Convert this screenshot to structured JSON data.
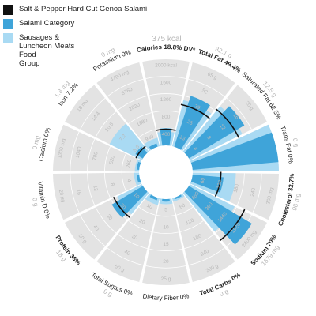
{
  "legend": [
    {
      "label": "Salt & Pepper Hard Cut Genoa Salami",
      "color": "#111111"
    },
    {
      "label": "Salami Category",
      "color": "#3fa4d9"
    },
    {
      "label": "Sausages &\nLuncheon Meats\nFood\nGroup",
      "color": "#a9daf3"
    }
  ],
  "header": {
    "kcal": "375 kcal"
  },
  "chart_data": {
    "type": "radial-bar",
    "series_colors": {
      "product": "#111111",
      "category": "#3fa4d9",
      "food_group": "#a9daf3"
    },
    "nutrients": [
      {
        "label": "Calories 18.8% DV*",
        "bold": true,
        "sub": "",
        "ticks": [
          "400",
          "800",
          "1200",
          "1600",
          "2000 kcal"
        ],
        "product": 0.188,
        "category": 0.2,
        "food_group": 0.16
      },
      {
        "label": "Total Fat 49.4%",
        "bold": true,
        "sub": "32.1 g",
        "ticks": [
          "13",
          "26",
          "39",
          "52",
          "65 g"
        ],
        "product": 0.494,
        "category": 0.62,
        "food_group": 0.55
      },
      {
        "label": "Saturated Fat 62.5%",
        "bold": false,
        "sub": "12.5 g",
        "ticks": [
          "4",
          "8",
          "12",
          "16",
          "20 g"
        ],
        "product": 0.625,
        "category": 0.75,
        "food_group": 0.68
      },
      {
        "label": "Trans Fat 0%",
        "bold": false,
        "sub": "0 g",
        "ticks": [
          "",
          "",
          "",
          "",
          ""
        ],
        "product": 0.0,
        "category": 1.0,
        "food_group": 1.0
      },
      {
        "label": "Cholesterol 32.7%",
        "bold": true,
        "sub": "98 mg",
        "ticks": [
          "60",
          "120",
          "180",
          "240",
          "300 mg"
        ],
        "product": 0.327,
        "category": 0.36,
        "food_group": 0.5
      },
      {
        "label": "Sodium 70%",
        "bold": true,
        "sub": "1679 mg",
        "ticks": [
          "480",
          "960",
          "1440",
          "1920",
          "2400 mg"
        ],
        "product": 0.7,
        "category": 0.85,
        "food_group": 0.58
      },
      {
        "label": "Total Carbs 0%",
        "bold": true,
        "sub": "0 g",
        "ticks": [
          "60",
          "120",
          "180",
          "240",
          "300 g"
        ],
        "product": 0.0,
        "category": 0.02,
        "food_group": 0.04
      },
      {
        "label": "Dietary Fiber 0%",
        "bold": false,
        "sub": "",
        "ticks": [
          "5",
          "10",
          "15",
          "20",
          "25 g"
        ],
        "product": 0.0,
        "category": 0.03,
        "food_group": 0.06
      },
      {
        "label": "Total Sugars 0%",
        "bold": false,
        "sub": "0 g",
        "ticks": [
          "10",
          "20",
          "30",
          "40",
          "50 g"
        ],
        "product": 0.0,
        "category": 0.03,
        "food_group": 0.08
      },
      {
        "label": "Protein 36%",
        "bold": true,
        "sub": "18 g",
        "ticks": [
          "10",
          "20",
          "30",
          "40",
          "50 g"
        ],
        "product": 0.36,
        "category": 0.42,
        "food_group": 0.32
      },
      {
        "label": "Vitamin D 0%",
        "bold": false,
        "sub": "0 g",
        "ticks": [
          "4",
          "8",
          "12",
          "16",
          "20 µg"
        ],
        "product": 0.0,
        "category": 0.03,
        "food_group": 0.06
      },
      {
        "label": "Calcium 0%",
        "bold": false,
        "sub": "0 mg",
        "ticks": [
          "260",
          "520",
          "780",
          "1040",
          "1300 mg"
        ],
        "product": 0.0,
        "category": 0.03,
        "food_group": 0.05
      },
      {
        "label": "Iron 7.2%",
        "bold": false,
        "sub": "1.3 mg",
        "ticks": [
          "3.6",
          "7.2",
          "10.8",
          "14.4",
          "18 mg"
        ],
        "product": 0.072,
        "category": 0.1,
        "food_group": 0.42
      },
      {
        "label": "Potassium 0%",
        "bold": false,
        "sub": "0 mg",
        "ticks": [
          "940",
          "1880",
          "2820",
          "3760",
          "4700 mg"
        ],
        "product": 0.0,
        "category": 0.04,
        "food_group": 0.1
      }
    ]
  }
}
